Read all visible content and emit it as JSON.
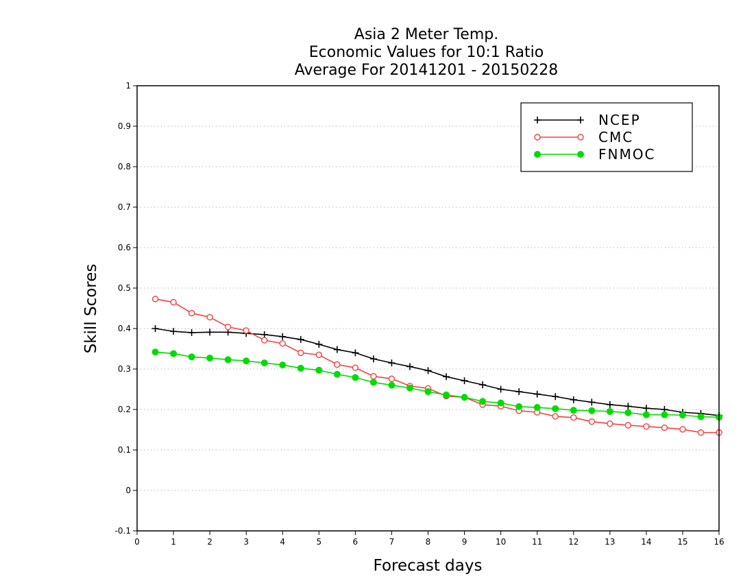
{
  "chart_data": {
    "type": "line",
    "title": [
      "Asia 2 Meter Temp.",
      "Economic Values for 10:1 Ratio",
      "Average For 20141201 - 20150228"
    ],
    "xlabel": "Forecast days",
    "ylabel": "Skill Scores",
    "xlim": [
      0,
      16
    ],
    "ylim": [
      -0.1,
      1
    ],
    "xticks": [
      0,
      1,
      2,
      3,
      4,
      5,
      6,
      7,
      8,
      9,
      10,
      11,
      12,
      13,
      14,
      15,
      16
    ],
    "yticks": [
      -0.1,
      0,
      0.1,
      0.2,
      0.3,
      0.4,
      0.5,
      0.6,
      0.7,
      0.8,
      0.9,
      1
    ],
    "ytick_labels": [
      "-0.1",
      "0",
      "0.1",
      "0.2",
      "0.3",
      "0.4",
      "0.5",
      "0.6",
      "0.7",
      "0.8",
      "0.9",
      "1"
    ],
    "grid": "horizontal dotted",
    "legend_position": "top-right",
    "x": [
      0.5,
      1,
      1.5,
      2,
      2.5,
      3,
      3.5,
      4,
      4.5,
      5,
      5.5,
      6,
      6.5,
      7,
      7.5,
      8,
      8.5,
      9,
      9.5,
      10,
      10.5,
      11,
      11.5,
      12,
      12.5,
      13,
      13.5,
      14,
      14.5,
      15,
      15.5,
      16
    ],
    "series": [
      {
        "name": "NCEP",
        "color": "#000000",
        "marker": "plus",
        "values": [
          0.4,
          0.393,
          0.39,
          0.391,
          0.391,
          0.388,
          0.385,
          0.38,
          0.373,
          0.361,
          0.348,
          0.34,
          0.325,
          0.315,
          0.306,
          0.296,
          0.281,
          0.271,
          0.261,
          0.25,
          0.244,
          0.238,
          0.232,
          0.224,
          0.218,
          0.212,
          0.208,
          0.203,
          0.2,
          0.193,
          0.19,
          0.185
        ]
      },
      {
        "name": "CMC",
        "color": "#f04040",
        "marker": "open-circle",
        "values": [
          0.473,
          0.465,
          0.438,
          0.428,
          0.404,
          0.395,
          0.371,
          0.363,
          0.34,
          0.335,
          0.311,
          0.303,
          0.282,
          0.276,
          0.258,
          0.252,
          0.233,
          0.23,
          0.212,
          0.208,
          0.197,
          0.193,
          0.183,
          0.18,
          0.17,
          0.165,
          0.161,
          0.158,
          0.155,
          0.151,
          0.143,
          0.143
        ]
      },
      {
        "name": "FNMOC",
        "color": "#00dc00",
        "marker": "filled-circle",
        "values": [
          0.342,
          0.338,
          0.33,
          0.327,
          0.323,
          0.32,
          0.315,
          0.31,
          0.302,
          0.297,
          0.287,
          0.279,
          0.267,
          0.26,
          0.253,
          0.244,
          0.236,
          0.23,
          0.22,
          0.216,
          0.207,
          0.205,
          0.202,
          0.198,
          0.197,
          0.195,
          0.192,
          0.187,
          0.187,
          0.186,
          0.182,
          0.181
        ]
      }
    ]
  }
}
